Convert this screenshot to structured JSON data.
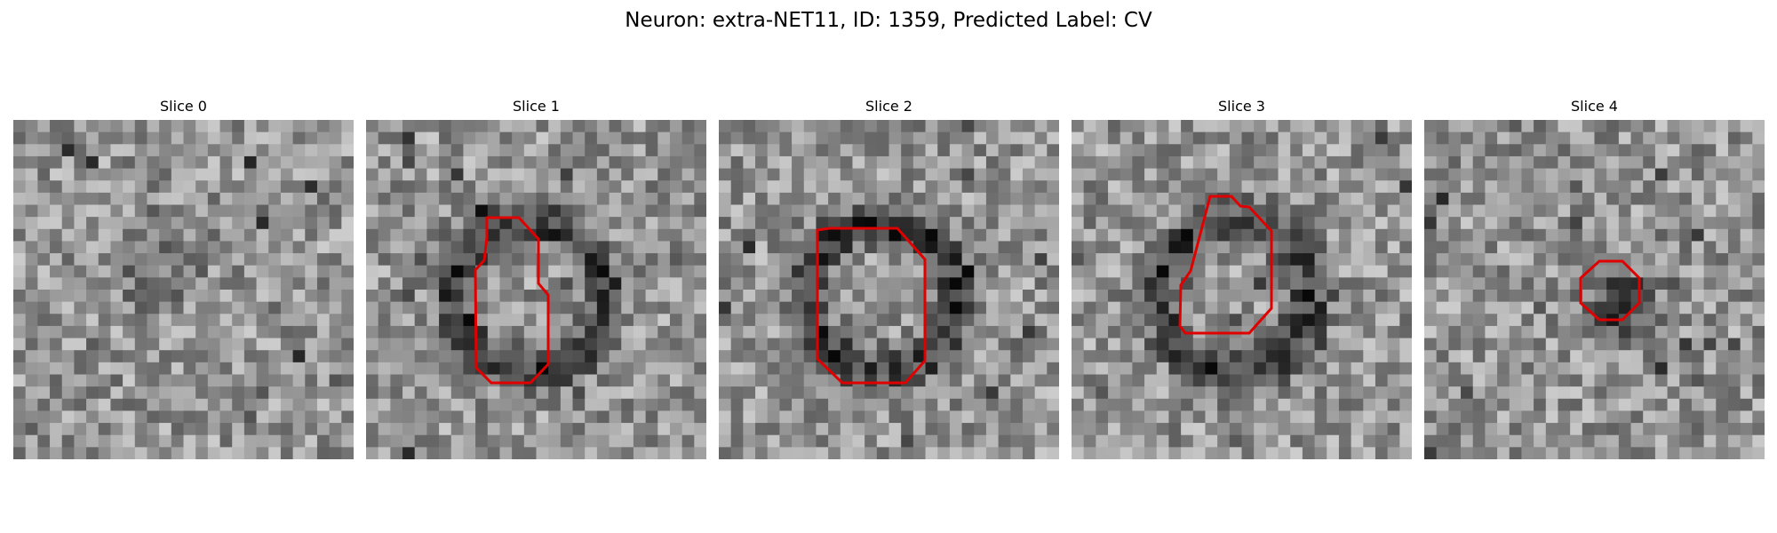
{
  "figure": {
    "title": "Neuron: extra-NET11, ID: 1359, Predicted Label: CV",
    "outline_color": "#e00000"
  },
  "panels": [
    {
      "title": "Slice 0",
      "seed": 11,
      "feature": "faint-dark-patch",
      "has_outline": false
    },
    {
      "title": "Slice 1",
      "seed": 23,
      "feature": "ring",
      "has_outline": true
    },
    {
      "title": "Slice 2",
      "seed": 37,
      "feature": "ring",
      "has_outline": true
    },
    {
      "title": "Slice 3",
      "seed": 41,
      "feature": "ring",
      "has_outline": true
    },
    {
      "title": "Slice 4",
      "seed": 59,
      "feature": "dark-blob",
      "has_outline": true
    }
  ]
}
